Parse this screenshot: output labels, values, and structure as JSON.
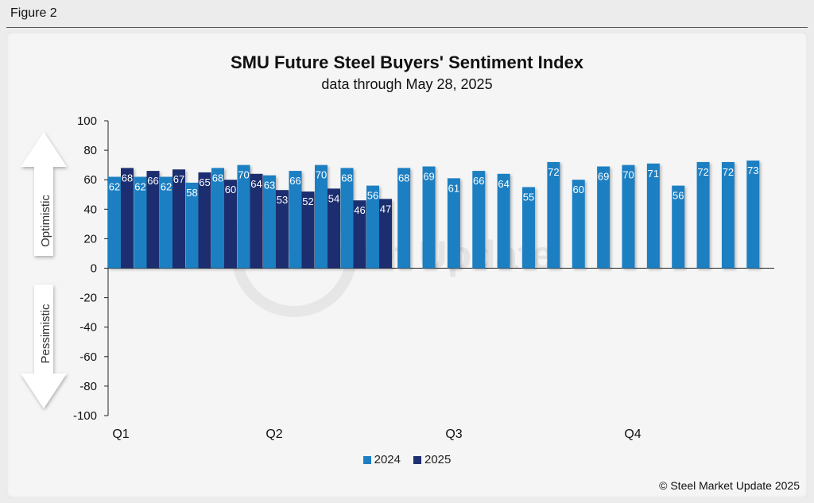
{
  "figure_label": "Figure 2",
  "copyright": "© Steel Market Update 2025",
  "watermark": "Steel Market Update",
  "colors": {
    "series_2024": "#1d7fc2",
    "series_2025": "#1f2f6f",
    "arrow": "#ffffff"
  },
  "chart_data": {
    "type": "bar",
    "title": "SMU Future Steel Buyers' Sentiment Index",
    "subtitle": "data through May 28, 2025",
    "ylim": [
      -100,
      100
    ],
    "yticks": [
      "100",
      "80",
      "60",
      "40",
      "20",
      "0",
      "-20",
      "-40",
      "-60",
      "-80",
      "-100"
    ],
    "ytick_values": [
      100,
      80,
      60,
      40,
      20,
      0,
      -20,
      -40,
      -60,
      -80,
      -100
    ],
    "quarter_labels": [
      "Q1",
      "Q2",
      "Q3",
      "Q4"
    ],
    "side_labels": {
      "up": "Optimistic",
      "down": "Pessimistic"
    },
    "legend_position": "bottom",
    "series": [
      {
        "name": "2024",
        "values": [
          62,
          62,
          62,
          58,
          68,
          70,
          63,
          66,
          70,
          68,
          56,
          68,
          69,
          61,
          66,
          64,
          55,
          72,
          60,
          69,
          70,
          71,
          56,
          72,
          72,
          73
        ]
      },
      {
        "name": "2025",
        "values": [
          68,
          66,
          67,
          65,
          60,
          64,
          53,
          52,
          54,
          46,
          47
        ]
      }
    ]
  }
}
